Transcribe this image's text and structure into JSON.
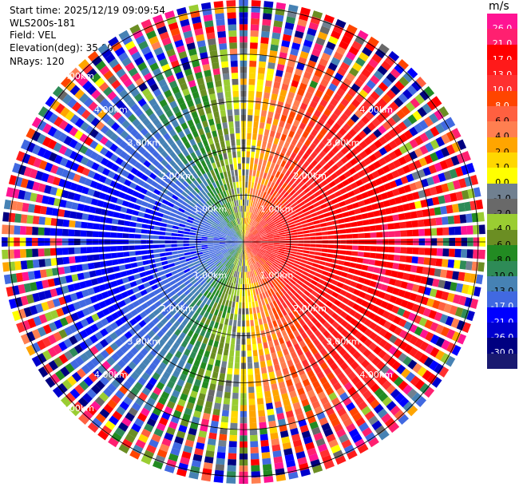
{
  "header": {
    "start_time": "Start time: 2025/12/19 09:09:54",
    "instrument": "WLS200s-181",
    "field": "Field: VEL",
    "elevation": "Elevation(deg): 35.00",
    "nrays": "NRays: 120"
  },
  "chart_data": {
    "type": "heatmap",
    "subtype": "polar PPI",
    "field": "VEL",
    "units": "m/s",
    "elevation_deg": 35.0,
    "n_rays": 120,
    "range_max_km": 5.0,
    "range_ring_labels_km": [
      "1.00km",
      "2.00km",
      "3.00km",
      "4.00km",
      "5.00km"
    ],
    "range_rings_km": [
      1.0,
      2.0,
      3.0,
      4.0,
      5.0
    ],
    "value_pattern": {
      "description": "dipole radial velocity pattern; positive (warm) on east side, negative (blue/green) on west side; noisy beyond ~3.5 km",
      "peak_positive_ms": 21.0,
      "peak_negative_ms": -17.0,
      "zero_line_azimuth_deg": [
        0,
        180
      ]
    },
    "colorbar": {
      "unit_label": "m/s",
      "ticks": [
        "26.0",
        "21.0",
        "17.0",
        "13.0",
        "10.0",
        "8.0",
        "6.0",
        "4.0",
        "2.0",
        "1.0",
        "0.0",
        "-1.0",
        "-2.0",
        "-4.0",
        "-6.0",
        "-8.0",
        "-10.0",
        "-13.0",
        "-17.0",
        "-21.0",
        "-26.0",
        "-30.0"
      ],
      "colors": [
        "#ff1493",
        "#ff2070",
        "#ff0000",
        "#ff1a1a",
        "#ff3030",
        "#ff4500",
        "#ff6040",
        "#ff7f50",
        "#ffa500",
        "#ffd700",
        "#ffff00",
        "#708090",
        "#696969",
        "#9acd32",
        "#6b8e23",
        "#228b22",
        "#2e8b57",
        "#4682b4",
        "#4169e1",
        "#0000ff",
        "#0000cd",
        "#000080",
        "#191970"
      ]
    }
  }
}
